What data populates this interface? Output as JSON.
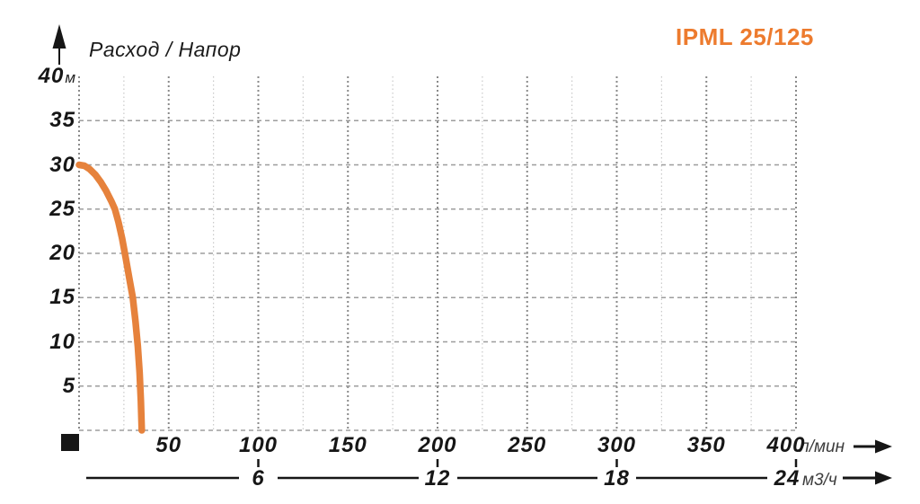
{
  "header": {
    "chart_label": "Расход / Напор",
    "model": "IPML 25/125"
  },
  "chart_data": {
    "type": "line",
    "title": "Расход / Напор",
    "series_label": "IPML 25/125",
    "x_axis_primary": {
      "unit": "л/мин",
      "range_lmin": [
        0,
        400
      ],
      "ticks": [
        50,
        100,
        150,
        200,
        250,
        300,
        350,
        400
      ]
    },
    "x_axis_secondary": {
      "unit": "м3/ч",
      "range_m3h": [
        0,
        24
      ],
      "ticks": [
        6,
        12,
        18,
        24
      ]
    },
    "y_axis": {
      "unit": "м",
      "range_m": [
        0,
        40
      ],
      "ticks": [
        40,
        35,
        30,
        25,
        20,
        15,
        10,
        5
      ]
    },
    "grid": {
      "horizontal_step_m": 5,
      "vertical_major_step_lmin": 50,
      "vertical_minor_step_lmin": 25
    },
    "series": [
      {
        "name": "IPML 25/125 head vs flow",
        "q_lmin": [
          0,
          3,
          6,
          9,
          12,
          15,
          18,
          20,
          22,
          24,
          26,
          28,
          30,
          31.5,
          32.8,
          33.8,
          34.5,
          35
        ],
        "h_m": [
          30,
          29.9,
          29.5,
          28.9,
          28.1,
          27.1,
          25.9,
          25,
          23.5,
          21.7,
          19.5,
          17.2,
          15,
          12.3,
          9.5,
          6.5,
          3.3,
          0
        ]
      }
    ],
    "legend_position": "none",
    "grid_on": true
  },
  "colors": {
    "accent_orange": "#ED7B2E",
    "curve_orange": "#E6823C",
    "grid_major": "#8A8A8A",
    "grid_minor": "#C9C9C9",
    "grid_dash": "#9D9D9D",
    "label_black": "#161616",
    "unit_gray": "#3D3D3D"
  }
}
